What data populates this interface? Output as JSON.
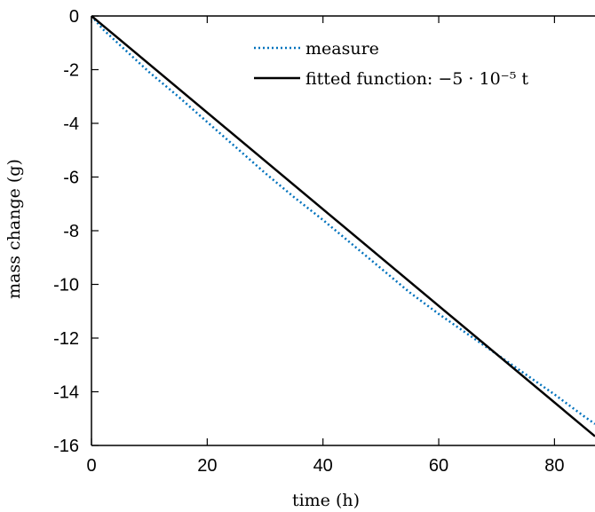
{
  "chart_data": {
    "type": "line",
    "xlabel": "time (h)",
    "ylabel": "mass change (g)",
    "xlim": [
      0,
      87
    ],
    "ylim": [
      -16,
      0
    ],
    "xticks": [
      0,
      20,
      40,
      60,
      80
    ],
    "yticks": [
      0,
      -2,
      -4,
      -6,
      -8,
      -10,
      -12,
      -14,
      -16
    ],
    "grid": false,
    "legend_position": "top-right",
    "series": [
      {
        "name": "measure",
        "style": "dotted",
        "color": "#0072BD",
        "x": [
          0,
          2,
          5,
          10,
          15,
          20,
          25,
          30,
          35,
          40,
          45,
          50,
          55,
          60,
          65,
          70,
          75,
          80,
          85,
          87
        ],
        "y": [
          0,
          -0.5,
          -1.1,
          -2.1,
          -3.0,
          -3.95,
          -4.9,
          -5.85,
          -6.75,
          -7.6,
          -8.5,
          -9.4,
          -10.3,
          -11.1,
          -11.85,
          -12.6,
          -13.35,
          -14.1,
          -14.9,
          -15.2
        ]
      },
      {
        "name": "fitted function: ",
        "name_math": "−5 · 10⁻⁵ t",
        "style": "solid",
        "color": "#000000",
        "x": [
          0,
          87
        ],
        "y": [
          0,
          -15.66
        ]
      }
    ]
  }
}
